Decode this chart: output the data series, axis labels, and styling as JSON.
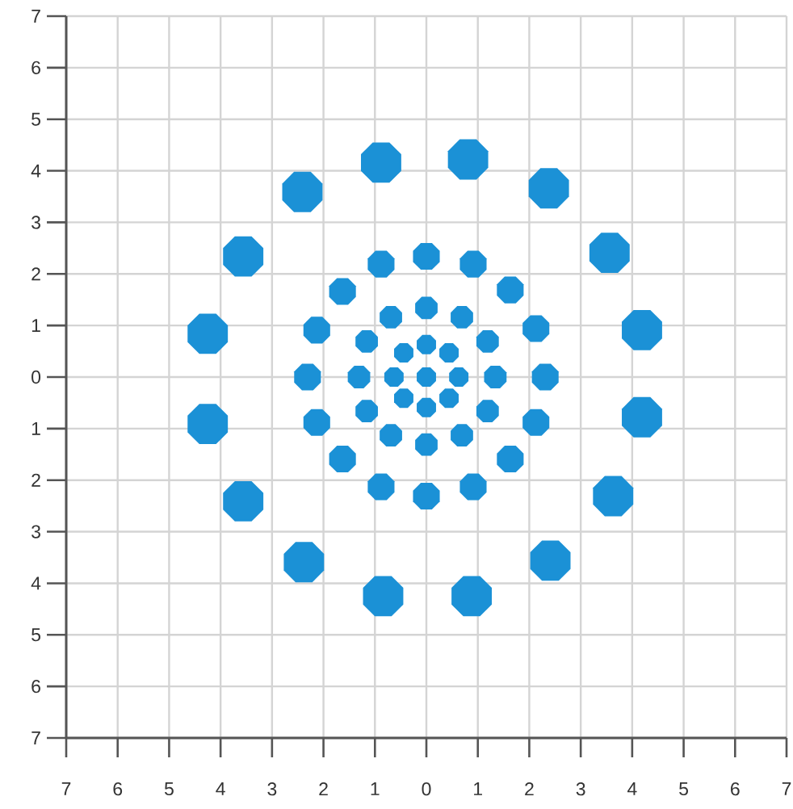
{
  "chart_data": {
    "type": "bubble",
    "color": "#1b91d6",
    "grid": true,
    "xlim": [
      -7,
      7
    ],
    "ylim": [
      -7,
      7
    ],
    "xticks": [
      {
        "value": -7,
        "label": "7"
      },
      {
        "value": -6,
        "label": "6"
      },
      {
        "value": -5,
        "label": "5"
      },
      {
        "value": -4,
        "label": "4"
      },
      {
        "value": -3,
        "label": "3"
      },
      {
        "value": -2,
        "label": "2"
      },
      {
        "value": -1,
        "label": "1"
      },
      0,
      1,
      2,
      3,
      4,
      5,
      6,
      7
    ],
    "yticks": [
      {
        "value": -7,
        "label": "7"
      },
      {
        "value": -6,
        "label": "6"
      },
      {
        "value": -5,
        "label": "5"
      },
      {
        "value": -4,
        "label": "4"
      },
      {
        "value": -3,
        "label": "3"
      },
      {
        "value": -2,
        "label": "2"
      },
      {
        "value": -1,
        "label": "1"
      },
      0,
      1,
      2,
      3,
      4,
      5,
      6,
      7
    ],
    "x": [
      -0.88,
      0.81,
      2.38,
      3.56,
      4.19,
      4.19,
      3.63,
      2.41,
      0.88,
      -0.84,
      -2.38,
      -3.56,
      -4.25,
      -4.25,
      -3.56,
      -2.41,
      0,
      0.91,
      1.63,
      2.13,
      2.31,
      2.13,
      1.63,
      0.91,
      0,
      -0.88,
      -1.63,
      -2.13,
      -2.31,
      -2.13,
      -1.63,
      -0.88,
      0,
      0.69,
      1.19,
      1.34,
      1.19,
      0.69,
      0,
      -0.69,
      -1.16,
      -1.31,
      -1.16,
      -0.69,
      0,
      0.44,
      0.63,
      0.44,
      0,
      -0.44,
      -0.63,
      -0.44,
      0
    ],
    "values": [
      4.16,
      4.22,
      3.66,
      2.41,
      0.91,
      -0.78,
      -2.31,
      -3.56,
      -4.25,
      -4.25,
      -3.59,
      -2.41,
      -0.91,
      0.84,
      2.34,
      3.59,
      2.34,
      2.19,
      1.69,
      0.94,
      0,
      -0.88,
      -1.59,
      -2.13,
      -2.31,
      -2.13,
      -1.59,
      -0.88,
      0,
      0.91,
      1.66,
      2.19,
      1.34,
      1.16,
      0.69,
      0,
      -0.66,
      -1.13,
      -1.31,
      -1.13,
      -0.66,
      0,
      0.69,
      1.16,
      0.63,
      0.47,
      0,
      -0.41,
      -0.59,
      -0.41,
      0,
      0.47,
      0
    ],
    "sizes": [
      1,
      1,
      1,
      1,
      1,
      1,
      1,
      1,
      1,
      1,
      1,
      1,
      1,
      1,
      1,
      1,
      0.44,
      0.44,
      0.44,
      0.44,
      0.44,
      0.44,
      0.44,
      0.44,
      0.44,
      0.44,
      0.44,
      0.44,
      0.44,
      0.44,
      0.44,
      0.44,
      0.31,
      0.31,
      0.31,
      0.31,
      0.31,
      0.31,
      0.31,
      0.31,
      0.31,
      0.31,
      0.31,
      0.31,
      0.23,
      0.23,
      0.23,
      0.23,
      0.23,
      0.23,
      0.23,
      0.23,
      0.23
    ]
  }
}
